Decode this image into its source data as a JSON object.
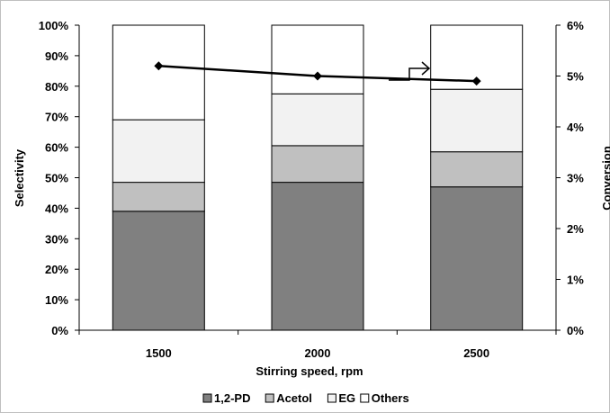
{
  "chart_data": {
    "type": "bar",
    "stacked": true,
    "categories": [
      "1500",
      "2000",
      "2500"
    ],
    "series": [
      {
        "name": "1,2-PD",
        "values": [
          39,
          48.5,
          47
        ],
        "color": "#808080"
      },
      {
        "name": "Acetol",
        "values": [
          9.5,
          12,
          11.5
        ],
        "color": "#c0c0c0"
      },
      {
        "name": "EG",
        "values": [
          20.5,
          17,
          20.5
        ],
        "color": "#f2f2f2"
      },
      {
        "name": "Others",
        "values": [
          31,
          22.5,
          21
        ],
        "color": "#ffffff"
      }
    ],
    "line_series": {
      "name": "Conversion",
      "axis": "right",
      "values": [
        5.2,
        5.0,
        4.9
      ],
      "color": "#000000",
      "marker": "diamond"
    },
    "xlabel": "Stirring speed, rpm",
    "ylabel": "Selectivity",
    "ylabel_right": "Conversion",
    "ylim": [
      0,
      100
    ],
    "ylim_right": [
      0,
      6
    ],
    "yticks": [
      "0%",
      "10%",
      "20%",
      "30%",
      "40%",
      "50%",
      "60%",
      "70%",
      "80%",
      "90%",
      "100%"
    ],
    "yticks_right": [
      "0%",
      "1%",
      "2%",
      "3%",
      "4%",
      "5%",
      "6%"
    ],
    "legend_position": "bottom",
    "grid": false,
    "annotation": "arrow pointing to right axis"
  }
}
